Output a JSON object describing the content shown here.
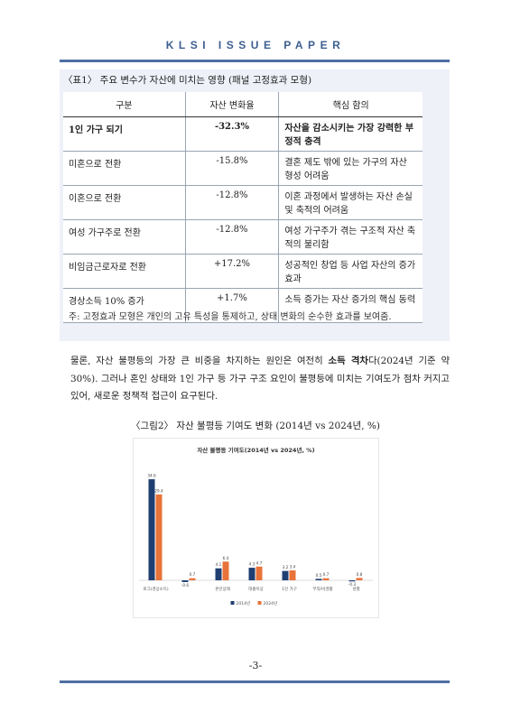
{
  "header": {
    "title": "KLSI ISSUE PAPER"
  },
  "table": {
    "caption": "〈표1〉 주요 변수가 자산에 미치는 영향 (패널 고정효과 모형)",
    "headers": [
      "구분",
      "자산 변화율",
      "핵심 함의"
    ],
    "rows": [
      {
        "category": "1인 가구 되기",
        "value": "-32.3%",
        "implication": "자산을 감소시키는 가장 강력한 부정적 충격"
      },
      {
        "category": "미혼으로 전환",
        "value": "-15.8%",
        "implication": "결혼 제도 밖에 있는 가구의 자산 형성 어려움"
      },
      {
        "category": "이혼으로 전환",
        "value": "-12.8%",
        "implication": "이혼 과정에서 발생하는 자산 손실 및 축적의 어려움"
      },
      {
        "category": "여성 가구주로 전환",
        "value": "-12.8%",
        "implication": "여성 가구주가 겪는 구조적 자산 축적의 불리함"
      },
      {
        "category": "비임금근로자로 전환",
        "value": "+17.2%",
        "implication": "성공적인 창업 등 사업 자산의 증가 효과"
      },
      {
        "category": "경상소득 10% 증가",
        "value": "+1.7%",
        "implication": "소득 증가는 자산 증가의 핵심 동력"
      }
    ],
    "note": "주: 고정효과 모형은 개인의 고유 특성을 통제하고, 상태 변화의 순수한 효과를 보여줌."
  },
  "body": {
    "part1": "물론, 자산 불평등의 가장 큰 비중을 차지하는 원인은 여전히 ",
    "bold": "소득 격차",
    "part2": "다(2024년 기준 약 30%). 그러나 혼인 상태와 1인 가구 등 가구 구조 요인이 불평등에 미치는 기여도가 점차 커지고 있어, 새로운 정책적 접근이 요구된다."
  },
  "figure": {
    "caption": "〈그림2〉 자산 불평등 기여도 변화 (2014년 vs 2024년, %)"
  },
  "chart_data": {
    "type": "bar",
    "title": "자산 불평등 기여도(2014년 vs 2024년, %)",
    "categories": [
      "로그(경상소득)",
      "",
      "혼인상태",
      "대졸이상",
      "1인 가구",
      "무직/비경활",
      "성별"
    ],
    "series": [
      {
        "name": "2014년",
        "values": [
          34.6,
          -0.6,
          4.1,
          4.3,
          3.2,
          0.5,
          -0.3
        ],
        "labels": [
          "34.6",
          "-0.6",
          "4.1",
          "4.3",
          "3.2",
          "0.5",
          "-0.3"
        ]
      },
      {
        "name": "2024년",
        "values": [
          29.4,
          0.7,
          6.4,
          4.7,
          3.4,
          0.7,
          0.8
        ],
        "labels": [
          "29.4",
          "0.7",
          "6.4",
          "4.7",
          "3.4",
          "0.7",
          "0.8"
        ]
      }
    ],
    "colors": {
      "2014년": "#1f3f73",
      "2024년": "#e8733a"
    },
    "ylim": [
      -2,
      38
    ],
    "legend": "bottom",
    "grid": false
  },
  "footer": {
    "page_number": "-3-"
  }
}
